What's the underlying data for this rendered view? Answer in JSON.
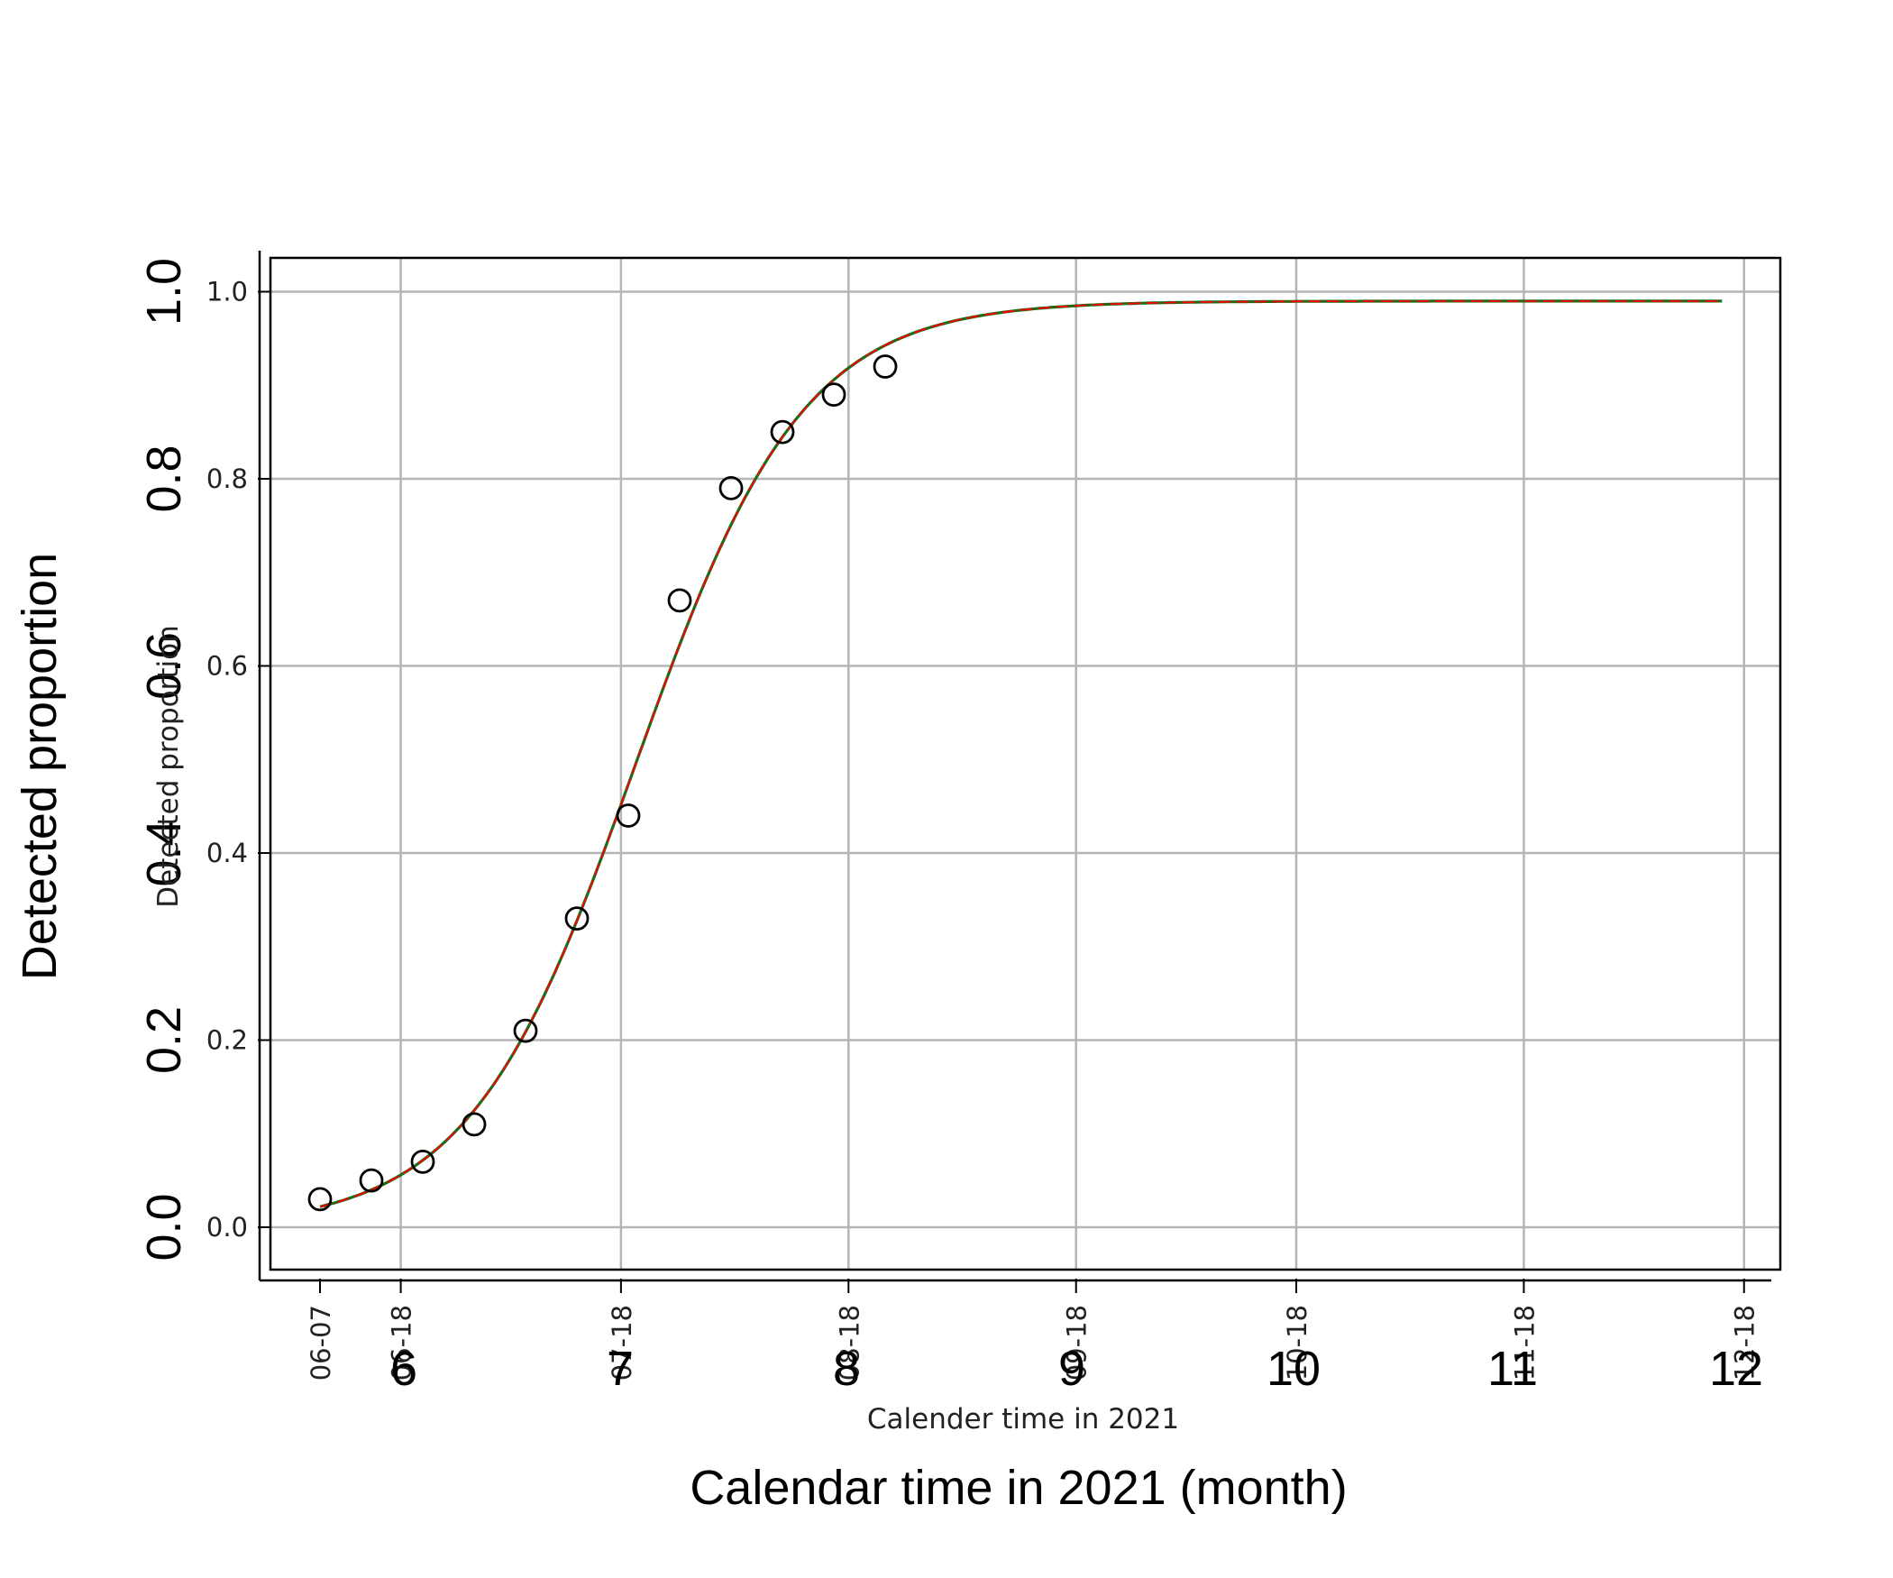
{
  "chart_data": {
    "type": "scatter",
    "xlabel_outer": "Calendar time in 2021 (month)",
    "ylabel_outer": "Detected proportion",
    "xlabel_inner": "Calender time in 2021",
    "ylabel_inner": "Detected proportion",
    "outer_x_ticks": [
      "6",
      "7",
      "8",
      "9",
      "10",
      "11",
      "12"
    ],
    "outer_y_ticks": [
      "0.0",
      "0.2",
      "0.4",
      "0.6",
      "0.8",
      "1.0"
    ],
    "inner_x_ticks": [
      "06-07",
      "06-18",
      "07-18",
      "08-18",
      "09-18",
      "10-18",
      "11-18",
      "12-18"
    ],
    "inner_y_ticks": [
      "0.0",
      "0.2",
      "0.4",
      "0.6",
      "0.8",
      "1.0"
    ],
    "x_day_of_year_for_ticks": [
      158,
      169,
      199,
      230,
      261,
      291,
      322,
      352
    ],
    "ylim": [
      -0.04,
      1.04
    ],
    "grid": true,
    "observed": {
      "x_day_of_year": [
        158,
        165,
        172,
        179,
        186,
        193,
        200,
        207,
        214,
        221,
        228,
        235
      ],
      "y": [
        0.03,
        0.05,
        0.07,
        0.11,
        0.21,
        0.33,
        0.44,
        0.67,
        0.79,
        0.85,
        0.89,
        0.92
      ]
    },
    "fitted_curve": {
      "model": "logistic",
      "asymptote": 0.99,
      "midpoint_day_of_year": 201,
      "rate_per_day": 0.088,
      "x_end_day_of_year": 349,
      "colors": [
        "#1a6b1a",
        "#ff0000"
      ]
    },
    "marker_color": "#000000"
  }
}
